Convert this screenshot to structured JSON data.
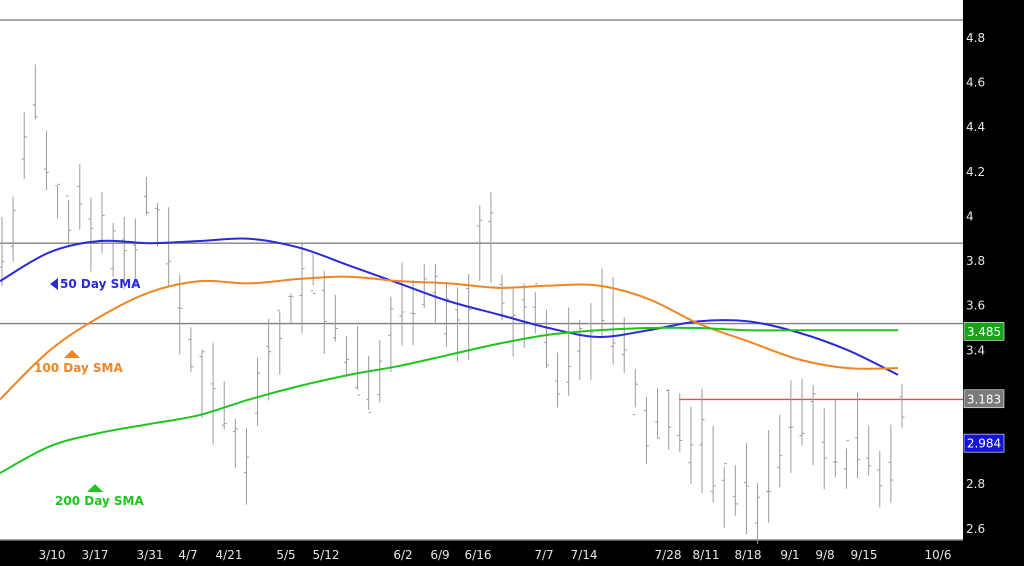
{
  "chart_data": {
    "type": "ohlc",
    "title": "",
    "xlabel": "",
    "ylabel": "",
    "ylim": [
      2.55,
      4.97
    ],
    "grid": false,
    "y_ticks": [
      "2.6",
      "2.8",
      "3",
      "3.2",
      "3.4",
      "3.6",
      "3.8",
      "4",
      "4.2",
      "4.4",
      "4.6",
      "4.8"
    ],
    "x_tick_labels": [
      "3/10",
      "3/17",
      "3/31",
      "4/7",
      "4/21",
      "5/5",
      "5/12",
      "6/2",
      "6/9",
      "6/16",
      "7/7",
      "7/14",
      "7/28",
      "8/11",
      "8/18",
      "9/1",
      "9/8",
      "9/15",
      "10/6"
    ],
    "horizontal_lines": [
      {
        "y": 4.88,
        "color": "#808080"
      },
      {
        "y": 3.88,
        "color": "#808080"
      },
      {
        "y": 3.52,
        "color": "#808080"
      },
      {
        "y": 3.18,
        "color": "#e8474f"
      },
      {
        "y": 2.55,
        "color": "#808080"
      }
    ],
    "price_tags": [
      {
        "text": "3.485",
        "bg": "#1aa31a",
        "y": 3.485
      },
      {
        "text": "3.183",
        "bg": "#7a7a7a",
        "y": 3.183
      },
      {
        "text": "2.984",
        "bg": "#1414d6",
        "y": 2.984
      }
    ],
    "series": [
      {
        "name": "50 Day SMA",
        "color": "#2a2ad6",
        "label": "50 Day SMA",
        "x": [
          0,
          10,
          20,
          30,
          40,
          50,
          60,
          70,
          80,
          90,
          100,
          110,
          120,
          130,
          140,
          150,
          160,
          170,
          180
        ],
        "y": [
          3.71,
          3.84,
          3.89,
          3.88,
          3.89,
          3.9,
          3.86,
          3.78,
          3.7,
          3.62,
          3.56,
          3.5,
          3.46,
          3.49,
          3.53,
          3.53,
          3.48,
          3.4,
          3.29
        ]
      },
      {
        "name": "100 Day SMA",
        "color": "#f08524",
        "label": "100  Day SMA",
        "x": [
          0,
          10,
          20,
          30,
          40,
          50,
          60,
          70,
          80,
          90,
          100,
          110,
          120,
          130,
          140,
          150,
          160,
          170,
          180
        ],
        "y": [
          3.18,
          3.4,
          3.55,
          3.66,
          3.71,
          3.7,
          3.72,
          3.73,
          3.71,
          3.7,
          3.68,
          3.69,
          3.69,
          3.63,
          3.52,
          3.44,
          3.36,
          3.32,
          3.32
        ]
      },
      {
        "name": "200 Day SMA",
        "color": "#1fc41f",
        "label": "200 Day SMA",
        "x": [
          0,
          10,
          20,
          30,
          40,
          50,
          60,
          70,
          80,
          90,
          100,
          110,
          120,
          130,
          140,
          150,
          160,
          170,
          180
        ],
        "y": [
          2.85,
          2.97,
          3.03,
          3.07,
          3.11,
          3.18,
          3.24,
          3.29,
          3.33,
          3.38,
          3.43,
          3.47,
          3.49,
          3.5,
          3.5,
          3.49,
          3.49,
          3.49,
          3.49
        ]
      }
    ]
  }
}
